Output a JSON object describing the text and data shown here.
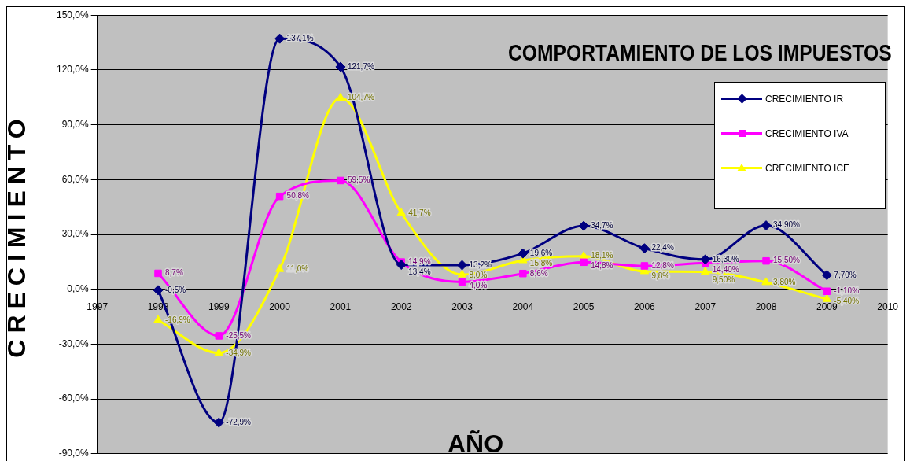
{
  "chart_data": {
    "type": "line",
    "title": "COMPORTAMIENTO DE LOS IMPUESTOS",
    "xlabel": "AÑO",
    "ylabel": "CRECIMIENTO",
    "x": [
      1998,
      1999,
      2000,
      2001,
      2002,
      2003,
      2004,
      2005,
      2006,
      2007,
      2008,
      2009
    ],
    "series": [
      {
        "name": "CRECIMIENTO IR",
        "color": "#000080",
        "marker": "diamond",
        "values": [
          -0.5,
          -72.9,
          137.1,
          121.7,
          13.4,
          13.2,
          19.6,
          34.7,
          22.4,
          16.3,
          34.9,
          7.7
        ],
        "value_labels": [
          "-0,5%",
          "-72,9%",
          "137,1%",
          "121,7%",
          "13,4%",
          "13,2%",
          "19,6%",
          "34,7%",
          "22,4%",
          "16,30%",
          "34,90%",
          "7,70%"
        ]
      },
      {
        "name": "CRECIMIENTO IVA",
        "color": "#ff00ff",
        "marker": "square",
        "values": [
          8.7,
          -25.5,
          50.8,
          59.5,
          14.9,
          4.0,
          8.6,
          14.8,
          12.8,
          14.4,
          15.5,
          -1.1
        ],
        "value_labels": [
          "8,7%",
          "-25,5%",
          "50,8%",
          "59,5%",
          "14,9%",
          "4,0%",
          "8,6%",
          "14,8%",
          "12,8%",
          "14,40%",
          "15,50%",
          "-1,10%"
        ]
      },
      {
        "name": "CRECIMIENTO ICE",
        "color": "#ffff00",
        "marker": "triangle",
        "values": [
          -16.9,
          -34.9,
          11.0,
          104.7,
          41.7,
          8.0,
          15.8,
          18.1,
          9.8,
          9.5,
          3.8,
          -5.4
        ],
        "value_labels": [
          "-16,9%",
          "-34,9%",
          "11,0%",
          "104,7%",
          "41,7%",
          "8,0%",
          "15,8%",
          "18,1%",
          "9,8%",
          "9,50%",
          "3,80%",
          "-5,40%"
        ]
      }
    ],
    "xlim": [
      1997,
      2010
    ],
    "xticks": [
      1997,
      1998,
      1999,
      2000,
      2001,
      2002,
      2003,
      2004,
      2005,
      2006,
      2007,
      2008,
      2009,
      2010
    ],
    "ylim": [
      -90,
      150
    ],
    "yticks": [
      {
        "value": -90,
        "label": "-90,0%"
      },
      {
        "value": -60,
        "label": "-60,0%"
      },
      {
        "value": -30,
        "label": "-30,0%"
      },
      {
        "value": 0,
        "label": "0,0%"
      },
      {
        "value": 30,
        "label": "30,0%"
      },
      {
        "value": 60,
        "label": "60,0%"
      },
      {
        "value": 90,
        "label": "90,0%"
      },
      {
        "value": 120,
        "label": "120,0%"
      },
      {
        "value": 150,
        "label": "150,0%"
      }
    ],
    "grid": "y",
    "legend": "top right",
    "line_style": "solid"
  }
}
